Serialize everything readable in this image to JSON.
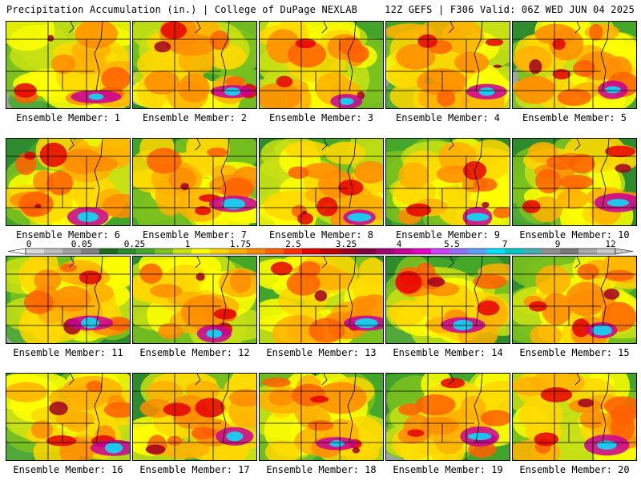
{
  "header": {
    "title_left": "Precipitation Accumulation (in.) | College of DuPage NEXLAB",
    "title_right": "12Z GEFS | F306 Valid: 06Z WED JUN 04 2025"
  },
  "map": {
    "type": "ensemble-panel-grid",
    "variable": "precipitation-accumulation",
    "units": "in.",
    "panels": [
      {
        "label": "Ensemble Member: 1",
        "pattern": 0
      },
      {
        "label": "Ensemble Member: 2",
        "pattern": 1
      },
      {
        "label": "Ensemble Member: 3",
        "pattern": 2
      },
      {
        "label": "Ensemble Member: 4",
        "pattern": 3
      },
      {
        "label": "Ensemble Member: 5",
        "pattern": 4
      },
      {
        "label": "Ensemble Member: 6",
        "pattern": 5
      },
      {
        "label": "Ensemble Member: 7",
        "pattern": 6
      },
      {
        "label": "Ensemble Member: 8",
        "pattern": 7
      },
      {
        "label": "Ensemble Member: 9",
        "pattern": 8
      },
      {
        "label": "Ensemble Member: 10",
        "pattern": 9
      },
      {
        "label": "Ensemble Member: 11",
        "pattern": 10
      },
      {
        "label": "Ensemble Member: 12",
        "pattern": 11
      },
      {
        "label": "Ensemble Member: 13",
        "pattern": 12
      },
      {
        "label": "Ensemble Member: 14",
        "pattern": 13
      },
      {
        "label": "Ensemble Member: 15",
        "pattern": 14
      },
      {
        "label": "Ensemble Member: 16",
        "pattern": 15
      },
      {
        "label": "Ensemble Member: 17",
        "pattern": 16
      },
      {
        "label": "Ensemble Member: 18",
        "pattern": 17
      },
      {
        "label": "Ensemble Member: 19",
        "pattern": 18
      },
      {
        "label": "Ensemble Member: 20",
        "pattern": 19
      }
    ]
  },
  "colorbar": {
    "tick_labels": [
      "0",
      "0.05",
      "0.25",
      "1",
      "1.75",
      "2.5",
      "3.25",
      "4",
      "5.5",
      "7",
      "9",
      "12"
    ],
    "colors": [
      "#d9d9d9",
      "#bdbdbd",
      "#a0a0a0",
      "#808080",
      "#1e6b1e",
      "#2e8b2e",
      "#45a82a",
      "#7cc21e",
      "#c8e014",
      "#ffff00",
      "#ffd700",
      "#ffb000",
      "#ff8c00",
      "#ff6000",
      "#ff3000",
      "#e60000",
      "#c00000",
      "#a00020",
      "#800040",
      "#a0006e",
      "#c8009a",
      "#e600c8",
      "#d040ff",
      "#9070ff",
      "#5aa0ff",
      "#00e5ff",
      "#00c8c8",
      "#40b0b0",
      "#909090",
      "#787878",
      "#a8a8a8",
      "#c8c8c8"
    ]
  }
}
